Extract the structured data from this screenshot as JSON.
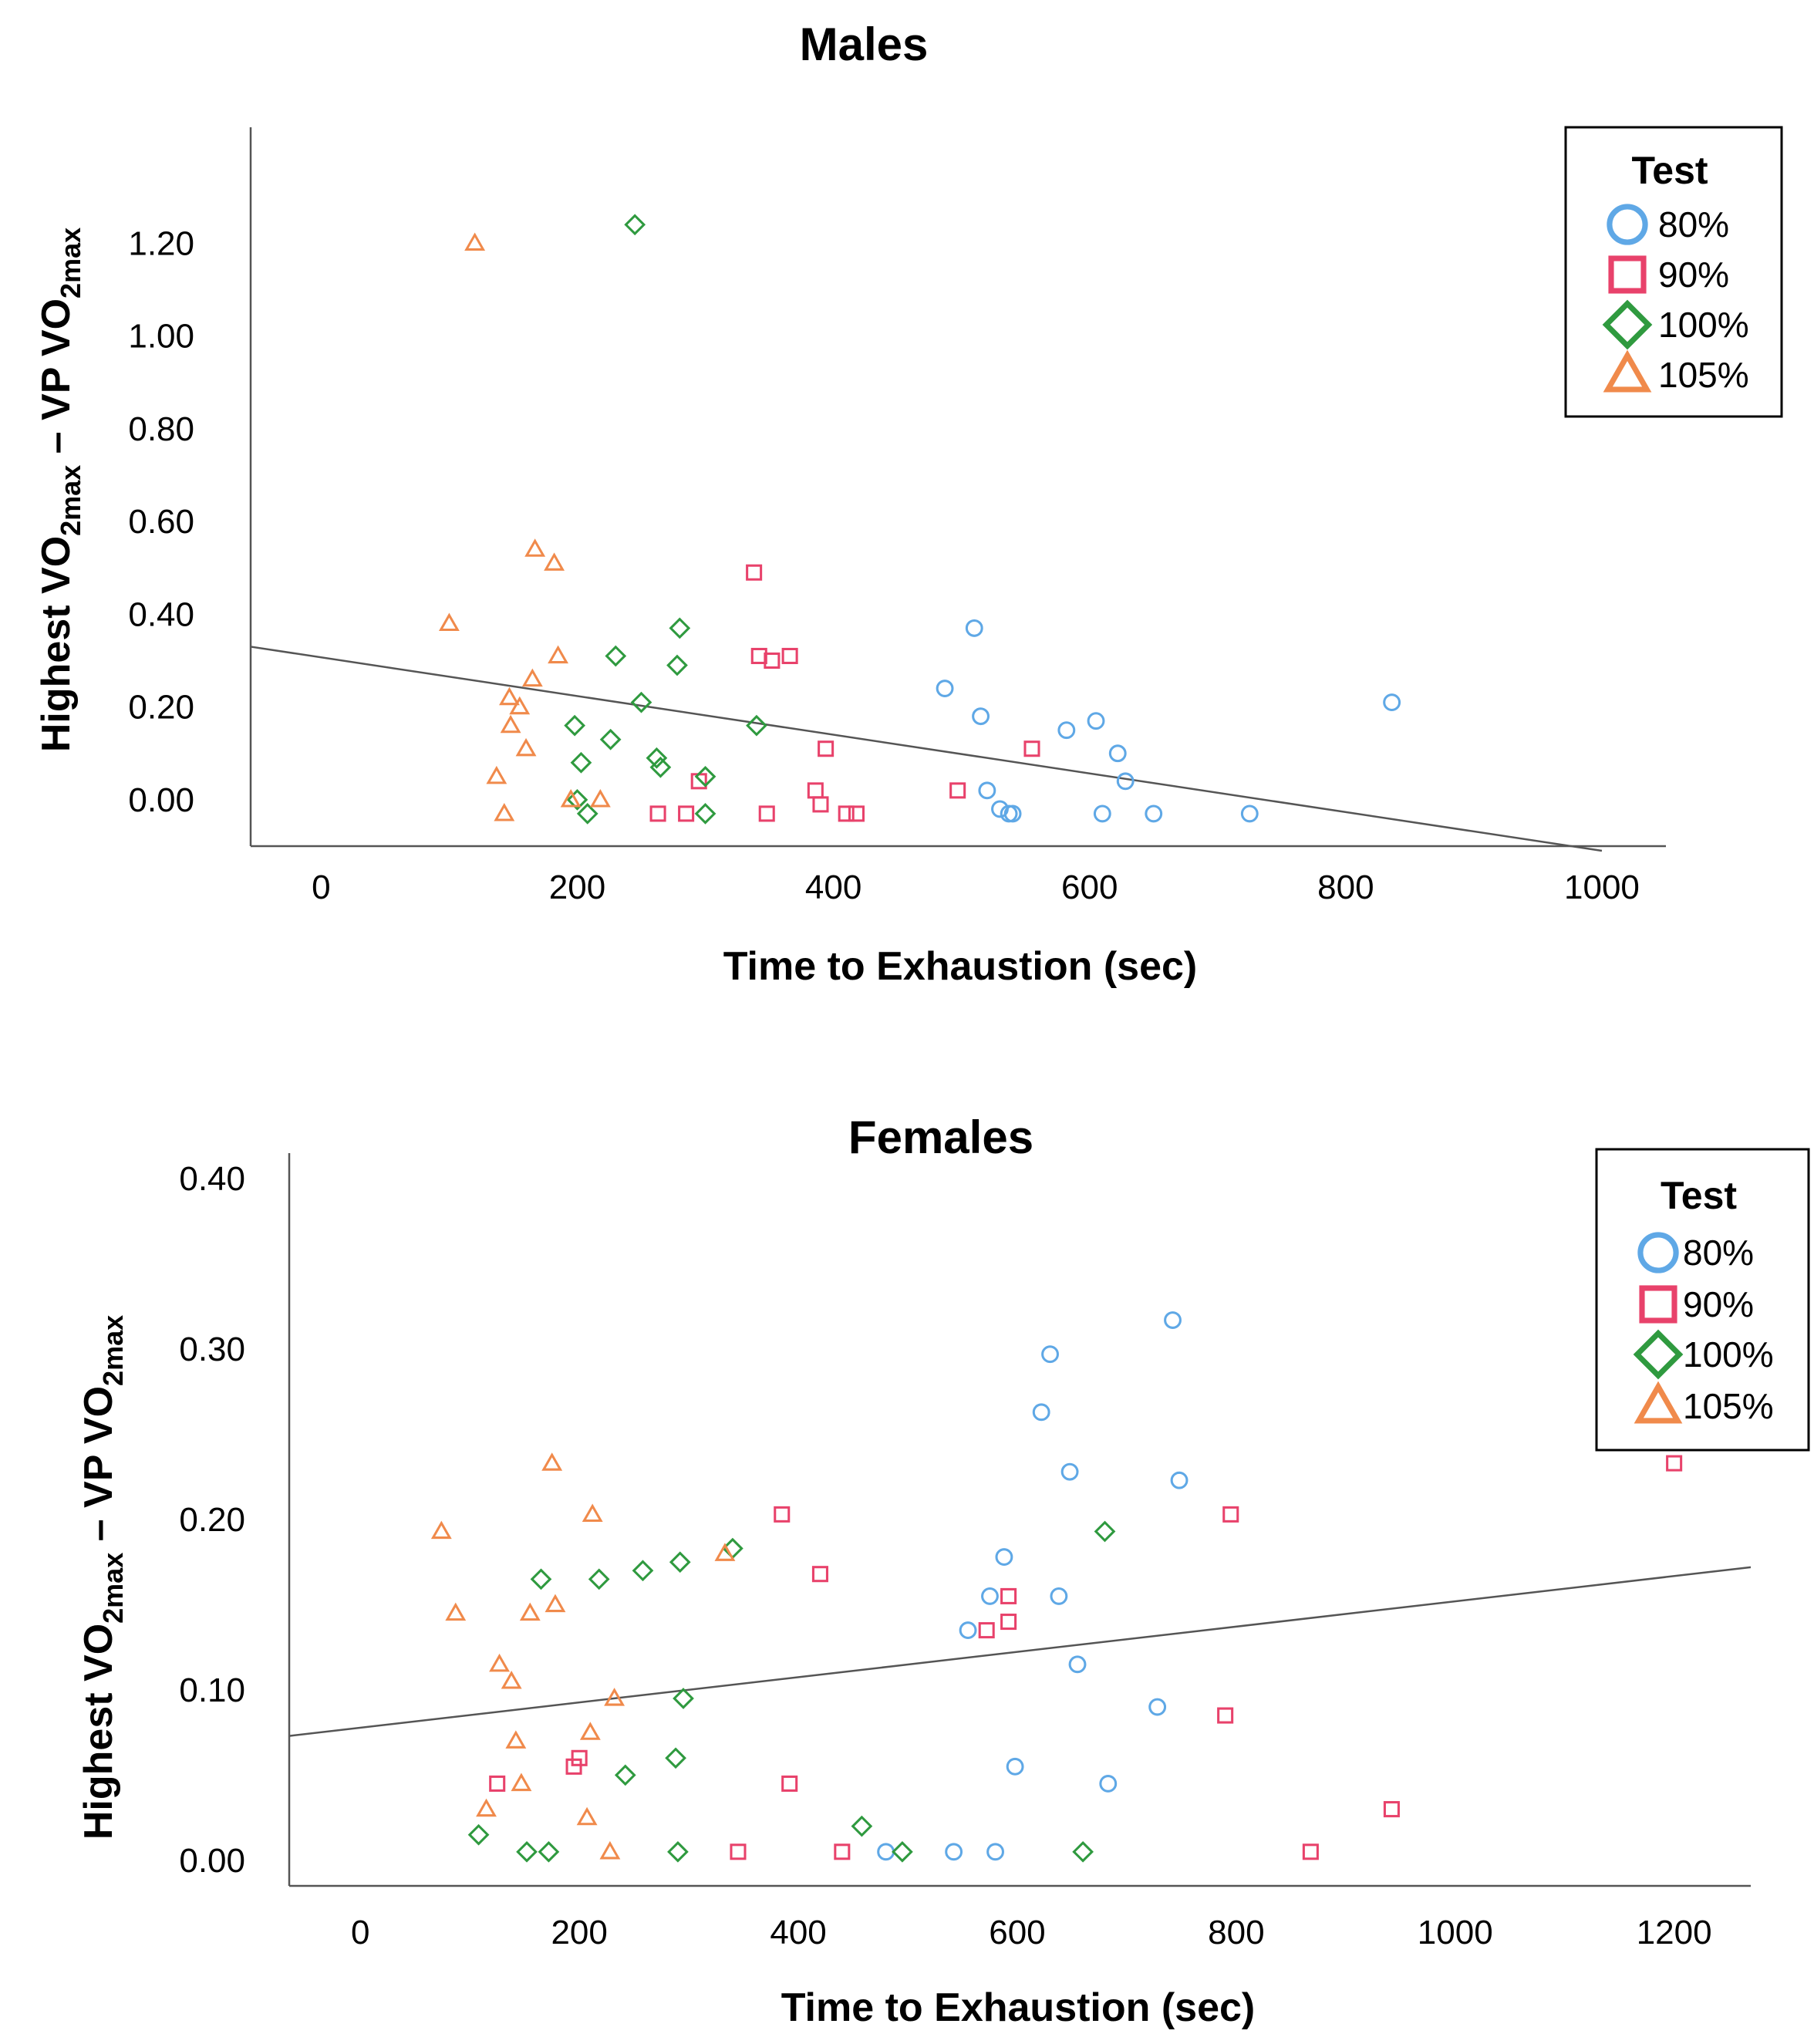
{
  "chart_data": [
    {
      "type": "scatter",
      "title": "Males",
      "xlabel": "Time to Exhaustion (sec)",
      "ylabel": {
        "pre1": "Highest VO",
        "sub1": "2max",
        "mid": " – VP VO",
        "sub2": "2max"
      },
      "xlim": [
        -55,
        1050
      ],
      "ylim": [
        -0.1,
        1.45
      ],
      "x_ticks": [
        0,
        200,
        400,
        600,
        800,
        1000
      ],
      "y_ticks": [
        0.0,
        0.2,
        0.4,
        0.6,
        0.8,
        1.0,
        1.2
      ],
      "x_tick_labels": [
        "0",
        "200",
        "400",
        "600",
        "800",
        "1000"
      ],
      "y_tick_labels": [
        "0.00",
        "0.20",
        "0.40",
        "0.60",
        "0.80",
        "1.00",
        "1.20"
      ],
      "grid": false,
      "legend": {
        "title": "Test",
        "position": "top-right"
      },
      "fit_line": {
        "x": [
          -55,
          1000
        ],
        "y": [
          0.33,
          -0.11
        ]
      },
      "series": [
        {
          "name": "80%",
          "marker": "circle",
          "color": "#5fa8e6",
          "points": [
            [
              487,
              0.24
            ],
            [
              510,
              0.37
            ],
            [
              515,
              0.18
            ],
            [
              520,
              0.02
            ],
            [
              530,
              -0.02
            ],
            [
              537,
              -0.03
            ],
            [
              540,
              -0.03
            ],
            [
              582,
              0.15
            ],
            [
              605,
              0.17
            ],
            [
              610,
              -0.03
            ],
            [
              622,
              0.1
            ],
            [
              628,
              0.04
            ],
            [
              650,
              -0.03
            ],
            [
              725,
              -0.03
            ],
            [
              836,
              0.21
            ]
          ]
        },
        {
          "name": "90%",
          "marker": "square",
          "color": "#e8426b",
          "points": [
            [
              263,
              -0.03
            ],
            [
              285,
              -0.03
            ],
            [
              295,
              0.04
            ],
            [
              338,
              0.49
            ],
            [
              342,
              0.31
            ],
            [
              348,
              -0.03
            ],
            [
              352,
              0.3
            ],
            [
              366,
              0.31
            ],
            [
              386,
              0.02
            ],
            [
              390,
              -0.01
            ],
            [
              394,
              0.11
            ],
            [
              410,
              -0.03
            ],
            [
              418,
              -0.03
            ],
            [
              497,
              0.02
            ],
            [
              555,
              0.11
            ]
          ]
        },
        {
          "name": "100%",
          "marker": "diamond",
          "color": "#2f9a3f",
          "points": [
            [
              198,
              0.16
            ],
            [
              200,
              0.0
            ],
            [
              203,
              0.08
            ],
            [
              208,
              -0.03
            ],
            [
              226,
              0.13
            ],
            [
              230,
              0.31
            ],
            [
              245,
              1.24
            ],
            [
              250,
              0.21
            ],
            [
              262,
              0.09
            ],
            [
              265,
              0.07
            ],
            [
              278,
              0.29
            ],
            [
              280,
              0.37
            ],
            [
              300,
              0.05
            ],
            [
              300,
              -0.03
            ],
            [
              340,
              0.16
            ]
          ]
        },
        {
          "name": "105%",
          "marker": "triangle",
          "color": "#f08a4b",
          "points": [
            [
              100,
              0.38
            ],
            [
              120,
              1.2
            ],
            [
              137,
              0.05
            ],
            [
              143,
              -0.03
            ],
            [
              147,
              0.22
            ],
            [
              148,
              0.16
            ],
            [
              155,
              0.2
            ],
            [
              160,
              0.11
            ],
            [
              165,
              0.26
            ],
            [
              167,
              0.54
            ],
            [
              182,
              0.51
            ],
            [
              185,
              0.31
            ],
            [
              195,
              0.0
            ],
            [
              218,
              0.0
            ]
          ]
        }
      ]
    },
    {
      "type": "scatter",
      "title": "Females",
      "xlabel": "Time to Exhaustion (sec)",
      "ylabel": {
        "pre1": "Highest VO",
        "sub1": "2max",
        "mid": " – VP VO",
        "sub2": "2max"
      },
      "xlim": [
        -65,
        1270
      ],
      "ylim": [
        -0.015,
        0.415
      ],
      "x_ticks": [
        0,
        200,
        400,
        600,
        800,
        1000,
        1200
      ],
      "y_ticks": [
        0.0,
        0.1,
        0.2,
        0.3,
        0.4
      ],
      "x_tick_labels": [
        "0",
        "200",
        "400",
        "600",
        "800",
        "1000",
        "1200"
      ],
      "y_tick_labels": [
        "0.00",
        "0.10",
        "0.20",
        "0.30",
        "0.40"
      ],
      "grid": false,
      "legend": {
        "title": "Test",
        "position": "top-right"
      },
      "fit_line": {
        "x": [
          -65,
          1270
        ],
        "y": [
          0.073,
          0.172
        ]
      },
      "series": [
        {
          "name": "80%",
          "marker": "circle",
          "color": "#5fa8e6",
          "points": [
            [
              480,
              0.005
            ],
            [
              542,
              0.005
            ],
            [
              555,
              0.135
            ],
            [
              575,
              0.155
            ],
            [
              580,
              0.005
            ],
            [
              588,
              0.178
            ],
            [
              598,
              0.055
            ],
            [
              622,
              0.263
            ],
            [
              630,
              0.297
            ],
            [
              638,
              0.155
            ],
            [
              648,
              0.228
            ],
            [
              655,
              0.115
            ],
            [
              683,
              0.045
            ],
            [
              728,
              0.09
            ],
            [
              742,
              0.317
            ],
            [
              748,
              0.223
            ]
          ]
        },
        {
          "name": "90%",
          "marker": "square",
          "color": "#e8426b",
          "points": [
            [
              125,
              0.045
            ],
            [
              195,
              0.055
            ],
            [
              200,
              0.06
            ],
            [
              345,
              0.005
            ],
            [
              385,
              0.203
            ],
            [
              392,
              0.045
            ],
            [
              420,
              0.168
            ],
            [
              440,
              0.005
            ],
            [
              572,
              0.135
            ],
            [
              592,
              0.14
            ],
            [
              592,
              0.155
            ],
            [
              790,
              0.085
            ],
            [
              795,
              0.203
            ],
            [
              868,
              0.005
            ],
            [
              942,
              0.03
            ],
            [
              1200,
              0.233
            ]
          ]
        },
        {
          "name": "100%",
          "marker": "diamond",
          "color": "#2f9a3f",
          "points": [
            [
              108,
              0.015
            ],
            [
              152,
              0.005
            ],
            [
              165,
              0.165
            ],
            [
              172,
              0.005
            ],
            [
              218,
              0.165
            ],
            [
              242,
              0.05
            ],
            [
              258,
              0.17
            ],
            [
              288,
              0.06
            ],
            [
              290,
              0.005
            ],
            [
              292,
              0.175
            ],
            [
              295,
              0.095
            ],
            [
              340,
              0.183
            ],
            [
              458,
              0.02
            ],
            [
              495,
              0.005
            ],
            [
              660,
              0.005
            ],
            [
              680,
              0.193
            ]
          ]
        },
        {
          "name": "105%",
          "marker": "triangle",
          "color": "#f08a4b",
          "points": [
            [
              74,
              0.193
            ],
            [
              87,
              0.145
            ],
            [
              115,
              0.03
            ],
            [
              127,
              0.115
            ],
            [
              138,
              0.105
            ],
            [
              142,
              0.07
            ],
            [
              147,
              0.045
            ],
            [
              155,
              0.145
            ],
            [
              175,
              0.233
            ],
            [
              178,
              0.15
            ],
            [
              207,
              0.025
            ],
            [
              210,
              0.075
            ],
            [
              212,
              0.203
            ],
            [
              228,
              0.005
            ],
            [
              232,
              0.095
            ],
            [
              333,
              0.18
            ]
          ]
        }
      ]
    }
  ]
}
